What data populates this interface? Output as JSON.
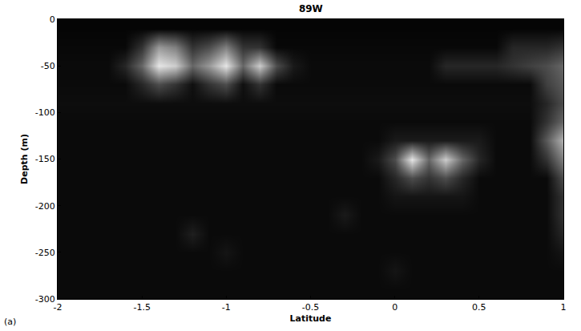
{
  "chart_data": {
    "type": "heatmap",
    "title": "89W",
    "x_label": "Latitude",
    "y_label": "Depth (m)",
    "annotation": "(a)",
    "xlim": [
      -2,
      1
    ],
    "xticks": [
      -2,
      -1.5,
      -1,
      -0.5,
      0,
      0.5,
      1
    ],
    "ylim": [
      -300,
      0
    ],
    "yticks": [
      -300,
      -250,
      -200,
      -150,
      -100,
      -50,
      0
    ],
    "zlim": [
      0,
      1
    ],
    "colors": [
      "#000000",
      "#ffffff"
    ],
    "x": [
      -2.0,
      -1.9,
      -1.8,
      -1.7,
      -1.6,
      -1.5,
      -1.4,
      -1.3,
      -1.2,
      -1.1,
      -1.0,
      -0.9,
      -0.8,
      -0.7,
      -0.6,
      -0.5,
      -0.4,
      -0.3,
      -0.2,
      -0.1,
      0.0,
      0.1,
      0.2,
      0.3,
      0.4,
      0.5,
      0.6,
      0.7,
      0.8,
      0.9,
      1.0
    ],
    "y": [
      -10,
      -30,
      -50,
      -70,
      -90,
      -110,
      -130,
      -150,
      -170,
      -190,
      -210,
      -230,
      -250,
      -270,
      -290
    ],
    "z": [
      [
        0.02,
        0.02,
        0.02,
        0.02,
        0.02,
        0.02,
        0.02,
        0.02,
        0.02,
        0.02,
        0.02,
        0.02,
        0.02,
        0.02,
        0.02,
        0.02,
        0.02,
        0.02,
        0.02,
        0.02,
        0.02,
        0.02,
        0.02,
        0.02,
        0.02,
        0.02,
        0.02,
        0.02,
        0.02,
        0.02,
        0.02
      ],
      [
        0.03,
        0.03,
        0.03,
        0.03,
        0.03,
        0.2,
        0.6,
        0.5,
        0.2,
        0.3,
        0.5,
        0.2,
        0.2,
        0.03,
        0.03,
        0.03,
        0.03,
        0.03,
        0.03,
        0.03,
        0.03,
        0.03,
        0.03,
        0.03,
        0.03,
        0.03,
        0.03,
        0.15,
        0.15,
        0.15,
        0.2
      ],
      [
        0.04,
        0.04,
        0.04,
        0.04,
        0.15,
        0.4,
        0.9,
        0.8,
        0.4,
        0.6,
        0.9,
        0.4,
        0.8,
        0.3,
        0.1,
        0.04,
        0.04,
        0.04,
        0.04,
        0.04,
        0.04,
        0.04,
        0.04,
        0.15,
        0.15,
        0.15,
        0.15,
        0.2,
        0.25,
        0.3,
        0.4
      ],
      [
        0.04,
        0.04,
        0.04,
        0.04,
        0.04,
        0.15,
        0.3,
        0.2,
        0.06,
        0.2,
        0.3,
        0.06,
        0.2,
        0.04,
        0.04,
        0.04,
        0.04,
        0.04,
        0.04,
        0.04,
        0.04,
        0.04,
        0.04,
        0.04,
        0.04,
        0.04,
        0.04,
        0.04,
        0.04,
        0.25,
        0.35
      ],
      [
        0.05,
        0.05,
        0.05,
        0.05,
        0.05,
        0.05,
        0.05,
        0.05,
        0.05,
        0.05,
        0.05,
        0.05,
        0.05,
        0.05,
        0.05,
        0.05,
        0.05,
        0.05,
        0.05,
        0.05,
        0.05,
        0.05,
        0.05,
        0.05,
        0.05,
        0.05,
        0.05,
        0.05,
        0.05,
        0.15,
        0.3
      ],
      [
        0.04,
        0.04,
        0.04,
        0.04,
        0.04,
        0.04,
        0.04,
        0.04,
        0.04,
        0.04,
        0.04,
        0.04,
        0.04,
        0.04,
        0.04,
        0.04,
        0.04,
        0.04,
        0.04,
        0.04,
        0.04,
        0.04,
        0.04,
        0.04,
        0.04,
        0.04,
        0.04,
        0.04,
        0.04,
        0.2,
        0.4
      ],
      [
        0.04,
        0.04,
        0.04,
        0.04,
        0.04,
        0.04,
        0.04,
        0.04,
        0.04,
        0.04,
        0.04,
        0.04,
        0.04,
        0.04,
        0.04,
        0.04,
        0.04,
        0.04,
        0.04,
        0.04,
        0.1,
        0.1,
        0.1,
        0.1,
        0.1,
        0.1,
        0.04,
        0.04,
        0.04,
        0.35,
        0.7
      ],
      [
        0.04,
        0.04,
        0.04,
        0.04,
        0.04,
        0.04,
        0.04,
        0.04,
        0.04,
        0.04,
        0.04,
        0.04,
        0.04,
        0.04,
        0.04,
        0.04,
        0.04,
        0.04,
        0.04,
        0.1,
        0.3,
        0.9,
        0.4,
        0.8,
        0.4,
        0.15,
        0.04,
        0.04,
        0.04,
        0.2,
        0.5
      ],
      [
        0.04,
        0.04,
        0.04,
        0.04,
        0.04,
        0.04,
        0.04,
        0.04,
        0.04,
        0.04,
        0.04,
        0.04,
        0.04,
        0.04,
        0.04,
        0.04,
        0.04,
        0.04,
        0.04,
        0.04,
        0.15,
        0.3,
        0.2,
        0.3,
        0.15,
        0.04,
        0.04,
        0.04,
        0.04,
        0.04,
        0.3
      ],
      [
        0.04,
        0.04,
        0.04,
        0.04,
        0.04,
        0.04,
        0.04,
        0.04,
        0.04,
        0.04,
        0.04,
        0.04,
        0.04,
        0.04,
        0.04,
        0.04,
        0.04,
        0.04,
        0.04,
        0.04,
        0.08,
        0.08,
        0.08,
        0.08,
        0.08,
        0.04,
        0.04,
        0.04,
        0.04,
        0.04,
        0.2
      ],
      [
        0.04,
        0.04,
        0.04,
        0.04,
        0.04,
        0.04,
        0.04,
        0.04,
        0.04,
        0.04,
        0.04,
        0.04,
        0.04,
        0.04,
        0.04,
        0.04,
        0.04,
        0.1,
        0.04,
        0.04,
        0.04,
        0.04,
        0.04,
        0.04,
        0.04,
        0.04,
        0.04,
        0.04,
        0.04,
        0.04,
        0.2
      ],
      [
        0.04,
        0.04,
        0.04,
        0.04,
        0.04,
        0.04,
        0.04,
        0.04,
        0.12,
        0.04,
        0.04,
        0.04,
        0.04,
        0.04,
        0.04,
        0.04,
        0.04,
        0.04,
        0.04,
        0.04,
        0.04,
        0.04,
        0.04,
        0.04,
        0.04,
        0.04,
        0.04,
        0.04,
        0.04,
        0.04,
        0.15
      ],
      [
        0.04,
        0.04,
        0.04,
        0.04,
        0.04,
        0.04,
        0.04,
        0.04,
        0.04,
        0.04,
        0.08,
        0.04,
        0.04,
        0.04,
        0.04,
        0.04,
        0.04,
        0.04,
        0.04,
        0.04,
        0.04,
        0.04,
        0.04,
        0.04,
        0.04,
        0.04,
        0.04,
        0.04,
        0.04,
        0.04,
        0.08
      ],
      [
        0.04,
        0.04,
        0.04,
        0.04,
        0.04,
        0.04,
        0.04,
        0.04,
        0.04,
        0.04,
        0.04,
        0.04,
        0.04,
        0.04,
        0.04,
        0.04,
        0.04,
        0.04,
        0.04,
        0.04,
        0.08,
        0.04,
        0.04,
        0.04,
        0.04,
        0.04,
        0.04,
        0.04,
        0.04,
        0.04,
        0.04
      ],
      [
        0.04,
        0.04,
        0.04,
        0.04,
        0.04,
        0.04,
        0.04,
        0.04,
        0.04,
        0.04,
        0.04,
        0.04,
        0.04,
        0.04,
        0.04,
        0.04,
        0.04,
        0.04,
        0.04,
        0.04,
        0.04,
        0.04,
        0.04,
        0.04,
        0.04,
        0.04,
        0.04,
        0.04,
        0.04,
        0.04,
        0.04
      ]
    ]
  }
}
